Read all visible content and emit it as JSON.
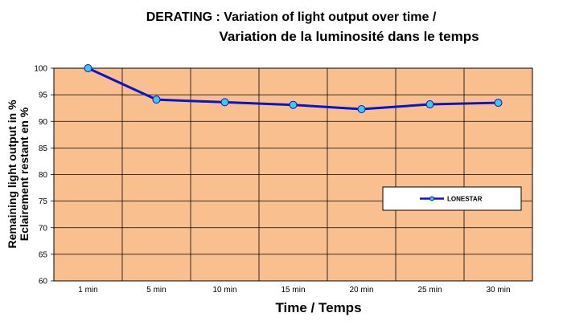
{
  "chart_data": {
    "type": "line",
    "title_line1": "DERATING : Variation of light output over time /",
    "title_line2": "Variation de la luminosité dans le temps",
    "xlabel": "Time / Temps",
    "ylabel_line1": "Remaining light output in %",
    "ylabel_line2": "Eclairement restant en %",
    "categories": [
      "1 min",
      "5 min",
      "10 min",
      "15 min",
      "20 min",
      "25 min",
      "30 min"
    ],
    "ylim": [
      60,
      100
    ],
    "yticks": [
      60,
      65,
      70,
      75,
      80,
      85,
      90,
      95,
      100
    ],
    "grid": true,
    "legend_position": "right",
    "series": [
      {
        "name": "LONESTAR",
        "values": [
          100,
          94.1,
          93.6,
          93.1,
          92.3,
          93.2,
          93.5
        ],
        "color": "#0a14c8",
        "marker_color": "#3cc8f0"
      }
    ],
    "plot_background": "#f9bf8f"
  }
}
